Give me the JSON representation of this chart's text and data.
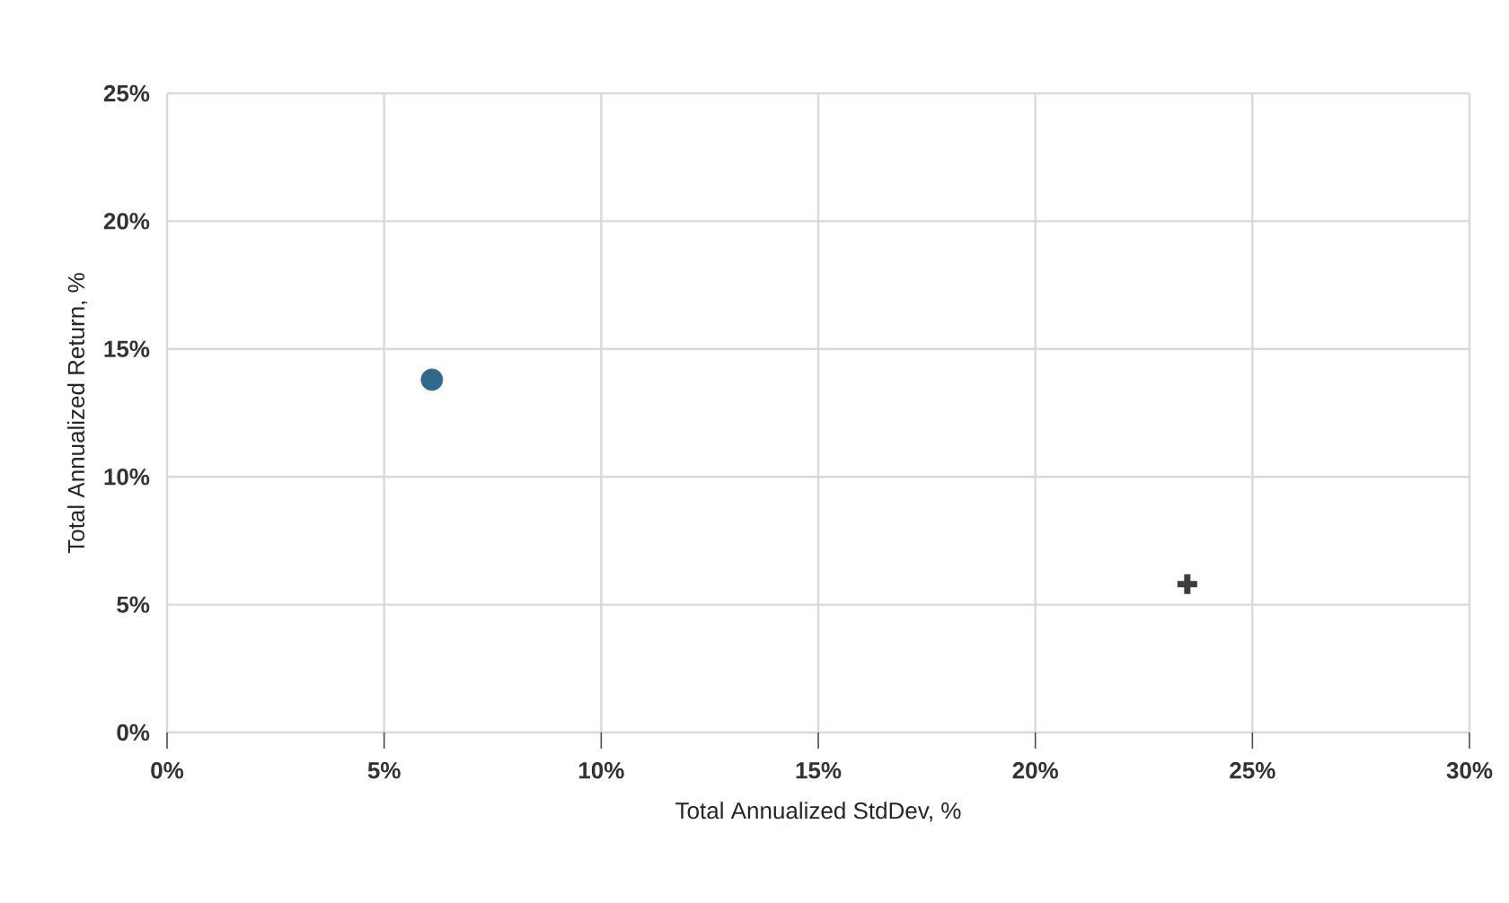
{
  "chart_data": {
    "type": "scatter",
    "xlabel": "Total Annualized StdDev, %",
    "ylabel": "Total Annualized Return, %",
    "xlim": [
      0,
      30
    ],
    "ylim": [
      0,
      25
    ],
    "xticks": [
      {
        "value": 0,
        "label": "0%"
      },
      {
        "value": 5,
        "label": "5%"
      },
      {
        "value": 10,
        "label": "10%"
      },
      {
        "value": 15,
        "label": "15%"
      },
      {
        "value": 20,
        "label": "20%"
      },
      {
        "value": 25,
        "label": "25%"
      },
      {
        "value": 30,
        "label": "30%"
      }
    ],
    "yticks": [
      {
        "value": 0,
        "label": "0%"
      },
      {
        "value": 5,
        "label": "5%"
      },
      {
        "value": 10,
        "label": "10%"
      },
      {
        "value": 15,
        "label": "15%"
      },
      {
        "value": 20,
        "label": "20%"
      },
      {
        "value": 25,
        "label": "25%"
      }
    ],
    "grid": true,
    "series": [
      {
        "color": "#2e6a8e",
        "marker": "circle",
        "x": [
          6.1
        ],
        "values": [
          13.8
        ]
      },
      {
        "color": "#3d3d3d",
        "marker": "cross",
        "x": [
          23.5
        ],
        "values": [
          5.8
        ]
      }
    ]
  }
}
